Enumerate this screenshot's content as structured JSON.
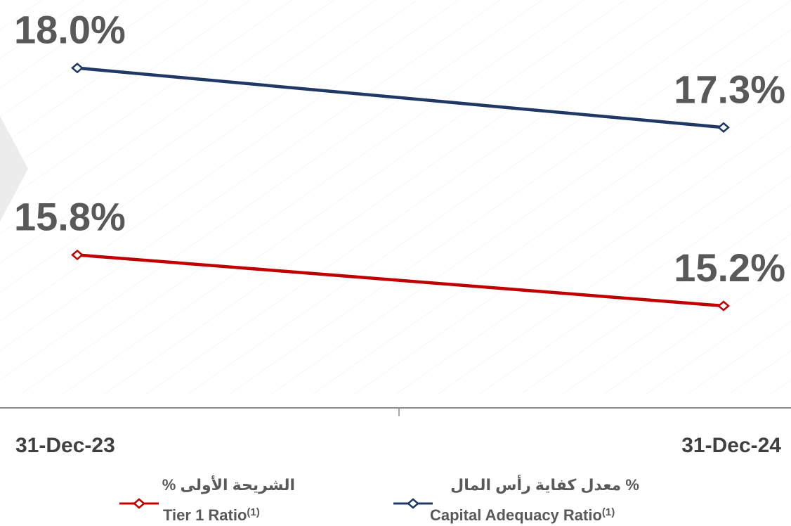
{
  "chart_data": {
    "type": "line",
    "categories": [
      "31-Dec-23",
      "31-Dec-24"
    ],
    "ylim": [
      14,
      18.8
    ],
    "series": [
      {
        "name": "Capital Adequacy Ratio",
        "name_note": "(1)",
        "name_ar": "معدل كفاية رأس المال %",
        "color": "#1f3864",
        "values": [
          18.0,
          17.3
        ],
        "value_labels": [
          "18.0%",
          "17.3%"
        ]
      },
      {
        "name": "Tier 1 Ratio",
        "name_note": "(1)",
        "name_ar": "% الشريحة الأولى",
        "color": "#c00000",
        "values": [
          15.8,
          15.2
        ],
        "value_labels": [
          "15.8%",
          "15.2%"
        ]
      }
    ]
  }
}
